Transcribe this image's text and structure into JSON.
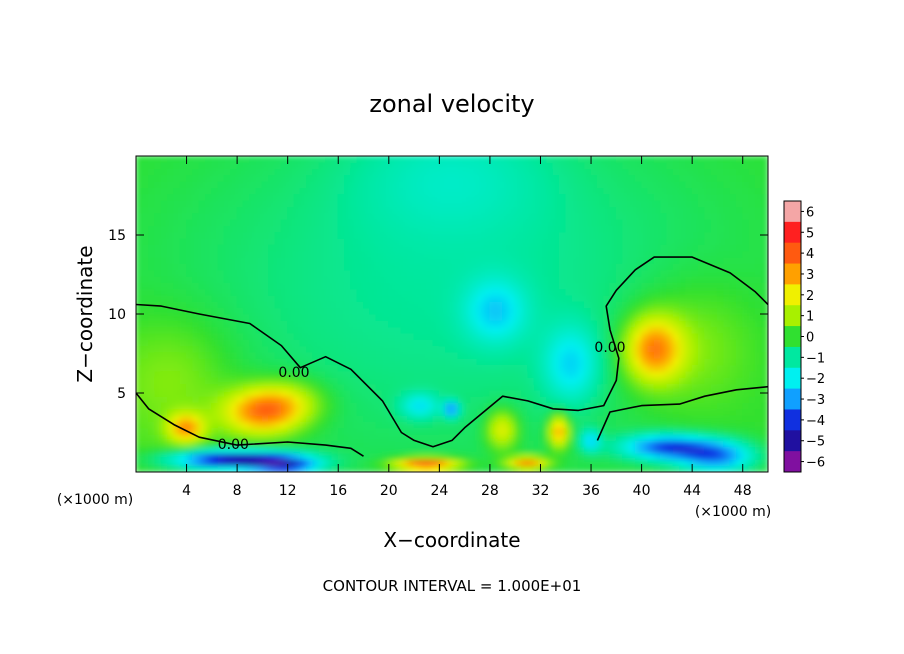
{
  "chart_data": {
    "type": "heatmap",
    "title": "zonal velocity",
    "xlabel": "X−coordinate",
    "ylabel": "Z−coordinate",
    "x_unit_left": "(×1000 m)",
    "x_unit_right": "(×1000 m)",
    "xlim": [
      0,
      50
    ],
    "ylim": [
      0,
      20
    ],
    "x_ticks": [
      4,
      8,
      12,
      16,
      20,
      24,
      28,
      32,
      36,
      40,
      44,
      48
    ],
    "y_ticks": [
      5,
      10,
      15
    ],
    "footer": "CONTOUR INTERVAL =  1.000E+01",
    "colorbar": {
      "labels": [
        "6",
        "5",
        "4",
        "3",
        "2",
        "1",
        "0",
        "−1",
        "−2",
        "−3",
        "−4",
        "−5",
        "−6"
      ],
      "levels": [
        6,
        5,
        4,
        3,
        2,
        1,
        0,
        -1,
        -2,
        -3,
        -4,
        -5,
        -6
      ],
      "colors": [
        "#f4a6a6",
        "#ff2020",
        "#ff5a10",
        "#ffa000",
        "#f0f000",
        "#a8f000",
        "#30e030",
        "#00e8a0",
        "#00f0f0",
        "#10a0ff",
        "#1030e0",
        "#2010a0",
        "#8010a0"
      ]
    },
    "contour_labels": [
      {
        "text": "0.00",
        "x": 12.5,
        "y": 6.0
      },
      {
        "text": "0.00",
        "x": 7.7,
        "y": 1.45
      },
      {
        "text": "0.00",
        "x": 37.5,
        "y": 7.6
      }
    ],
    "zero_contour": [
      [
        0,
        10.6
      ],
      [
        2,
        10.5
      ],
      [
        5,
        10.0
      ],
      [
        9,
        9.4
      ],
      [
        11.5,
        8.0
      ],
      [
        13,
        6.6
      ],
      [
        15,
        7.3
      ],
      [
        17,
        6.5
      ],
      [
        19.5,
        4.5
      ],
      [
        21,
        2.5
      ],
      [
        22,
        2.0
      ],
      [
        23.5,
        1.6
      ],
      [
        25,
        2.0
      ],
      [
        26,
        2.8
      ],
      [
        27.5,
        3.8
      ],
      [
        29,
        4.8
      ],
      [
        31,
        4.5
      ],
      [
        33,
        4.0
      ],
      [
        35,
        3.9
      ],
      [
        37,
        4.2
      ],
      [
        38,
        5.8
      ],
      [
        38.2,
        7.2
      ],
      [
        37.5,
        9.0
      ],
      [
        37.2,
        10.5
      ],
      [
        38,
        11.5
      ],
      [
        39.5,
        12.8
      ],
      [
        41,
        13.6
      ],
      [
        44,
        13.6
      ],
      [
        47,
        12.6
      ],
      [
        49,
        11.4
      ],
      [
        50,
        10.6
      ]
    ],
    "low_contour": [
      [
        0,
        5.0
      ],
      [
        1,
        4.0
      ],
      [
        3,
        3.0
      ],
      [
        5,
        2.2
      ],
      [
        8,
        1.7
      ],
      [
        12,
        1.9
      ],
      [
        15,
        1.7
      ],
      [
        17,
        1.5
      ],
      [
        18,
        1.0
      ]
    ],
    "right_contour": [
      [
        36.5,
        2.0
      ],
      [
        37.5,
        3.8
      ],
      [
        40,
        4.2
      ],
      [
        43,
        4.3
      ],
      [
        45,
        4.8
      ],
      [
        47.5,
        5.2
      ],
      [
        50,
        5.4
      ]
    ],
    "field": [
      {
        "x": 25,
        "y": 12,
        "sx": 28,
        "sy": 14,
        "v": -1.3
      },
      {
        "x": 25,
        "y": 19,
        "sx": 8,
        "sy": 4,
        "v": -0.8
      },
      {
        "x": 28.5,
        "y": 10.2,
        "sx": 2.4,
        "sy": 2.0,
        "v": -1.6
      },
      {
        "x": 34.5,
        "y": 6.8,
        "sx": 2.2,
        "sy": 2.4,
        "v": -1.7
      },
      {
        "x": 3,
        "y": 6,
        "sx": 5,
        "sy": 4,
        "v": 0.9
      },
      {
        "x": 10,
        "y": 3.8,
        "sx": 3.0,
        "sy": 1.4,
        "v": 3.4
      },
      {
        "x": 4,
        "y": 2.8,
        "sx": 1.4,
        "sy": 0.9,
        "v": 3.0
      },
      {
        "x": 12,
        "y": 4.5,
        "sx": 3,
        "sy": 1.4,
        "v": 1.5
      },
      {
        "x": 41,
        "y": 7.8,
        "sx": 2.2,
        "sy": 2.0,
        "v": 3.4
      },
      {
        "x": 44,
        "y": 8,
        "sx": 5,
        "sy": 4,
        "v": 1.0
      },
      {
        "x": 29,
        "y": 2.7,
        "sx": 1.2,
        "sy": 1.2,
        "v": 2.2
      },
      {
        "x": 33.5,
        "y": 2.6,
        "sx": 0.8,
        "sy": 1.0,
        "v": 3.3
      },
      {
        "x": 8,
        "y": 0.8,
        "sx": 5,
        "sy": 0.6,
        "v": -5.0
      },
      {
        "x": 12,
        "y": 0.4,
        "sx": 2.5,
        "sy": 0.5,
        "v": -3.0
      },
      {
        "x": 42,
        "y": 1.6,
        "sx": 3.5,
        "sy": 0.8,
        "v": -3.6
      },
      {
        "x": 46,
        "y": 1.0,
        "sx": 3,
        "sy": 1.0,
        "v": -3.2
      },
      {
        "x": 23,
        "y": 0.5,
        "sx": 2.5,
        "sy": 0.4,
        "v": 4.5
      },
      {
        "x": 31,
        "y": 0.6,
        "sx": 1.6,
        "sy": 0.4,
        "v": 3.5
      },
      {
        "x": 22.5,
        "y": 4.2,
        "sx": 1.5,
        "sy": 0.8,
        "v": -1.6
      },
      {
        "x": 25,
        "y": 4.0,
        "sx": 0.6,
        "sy": 0.5,
        "v": -2.8
      },
      {
        "x": 36,
        "y": 2.0,
        "sx": 0.8,
        "sy": 0.7,
        "v": -2.0
      }
    ]
  }
}
